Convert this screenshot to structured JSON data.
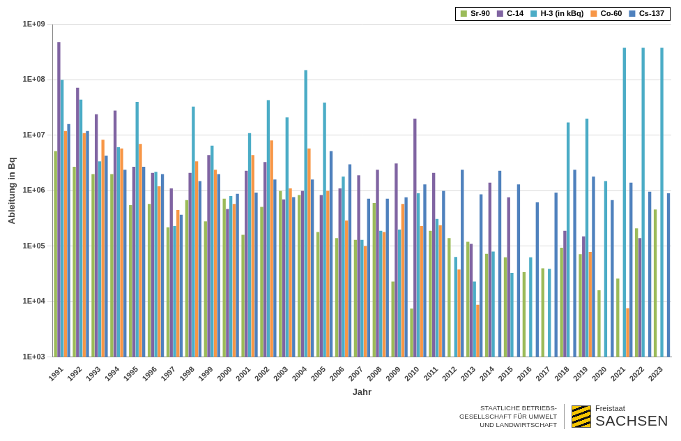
{
  "chart_data": {
    "type": "bar",
    "x_label": "Jahr",
    "y_label": "Ableitung in Bq",
    "annotations": [
      "STAATLICHE BETRIEBS-",
      "GESELLSCHAFT FÜR UMWELT",
      "UND LANDWIRTSCHAFT",
      "Freistaat",
      "SACHSEN"
    ],
    "categories": [
      "1991",
      "1992",
      "1993",
      "1994",
      "1995",
      "1996",
      "1997",
      "1998",
      "1999",
      "2000",
      "2001",
      "2002",
      "2003",
      "2004",
      "2005",
      "2006",
      "2007",
      "2008",
      "2009",
      "2010",
      "2011",
      "2012",
      "2013",
      "2014",
      "2015",
      "2016",
      "2017",
      "2018",
      "2019",
      "2020",
      "2021",
      "2022",
      "2023"
    ],
    "series": [
      {
        "name": "Sr-90",
        "color": "#9bbb59",
        "values": [
          5200000,
          2700000,
          2000000,
          2000000,
          550000,
          580000,
          220000,
          680000,
          280000,
          720000,
          160000,
          510000,
          1000000,
          840000,
          180000,
          140000,
          130000,
          600000,
          23000,
          7500,
          190000,
          140000,
          120000,
          73000,
          63000,
          34000,
          40000,
          94000,
          72000,
          16000,
          26000,
          210000,
          460000
        ]
      },
      {
        "name": "C-14",
        "color": "#8064a2",
        "values": [
          480000000,
          72000000,
          24000000,
          28000000,
          2700000,
          2100000,
          1100000,
          2100000,
          4400000,
          470000,
          2300000,
          3300000,
          700000,
          1000000,
          840000,
          1100000,
          1900000,
          2400000,
          3100000,
          20000000,
          2100000,
          null,
          110000,
          1400000,
          760000,
          null,
          null,
          190000,
          150000,
          null,
          null,
          140000,
          null
        ]
      },
      {
        "name": "H-3 (in kBq)",
        "color": "#4bacc6",
        "values": [
          100000000,
          44000000,
          3400000,
          6100000,
          40000000,
          2200000,
          230000,
          33000000,
          6500000,
          800000,
          11000000,
          43000000,
          21000000,
          150000000,
          39000000,
          1800000,
          130000,
          190000,
          200000,
          900000,
          310000,
          64000,
          23000,
          80000,
          33000,
          63000,
          39000,
          17000000,
          20000000,
          1500000,
          380000000,
          380000000,
          380000000
        ]
      },
      {
        "name": "Co-60",
        "color": "#f79646",
        "values": [
          12000000,
          11000000,
          8300000,
          5800000,
          7000000,
          1200000,
          450000,
          3400000,
          2400000,
          580000,
          4400000,
          8100000,
          1100000,
          5800000,
          1000000,
          290000,
          100000,
          180000,
          580000,
          230000,
          240000,
          38000,
          8800,
          null,
          null,
          null,
          null,
          null,
          79000,
          null,
          7600,
          null,
          null
        ]
      },
      {
        "name": "Cs-137",
        "color": "#4f81bd",
        "values": [
          16000000,
          12000000,
          4300000,
          2400000,
          2700000,
          2000000,
          370000,
          1500000,
          2000000,
          880000,
          930000,
          1600000,
          770000,
          1600000,
          5200000,
          3000000,
          720000,
          720000,
          760000,
          1300000,
          1000000,
          2400000,
          860000,
          2300000,
          1300000,
          620000,
          930000,
          2400000,
          1800000,
          680000,
          1400000,
          960000,
          900000
        ]
      }
    ],
    "log": "y",
    "ylim": [
      1000,
      1000000000
    ],
    "yticks": [
      {
        "value": 1000,
        "label": "1E+03"
      },
      {
        "value": 10000,
        "label": "1E+04"
      },
      {
        "value": 100000,
        "label": "1E+05"
      },
      {
        "value": 1000000,
        "label": "1E+06"
      },
      {
        "value": 10000000,
        "label": "1E+07"
      },
      {
        "value": 100000000,
        "label": "1E+08"
      },
      {
        "value": 1000000000,
        "label": "1E+09"
      }
    ],
    "grid": true,
    "legend": "top-right"
  }
}
